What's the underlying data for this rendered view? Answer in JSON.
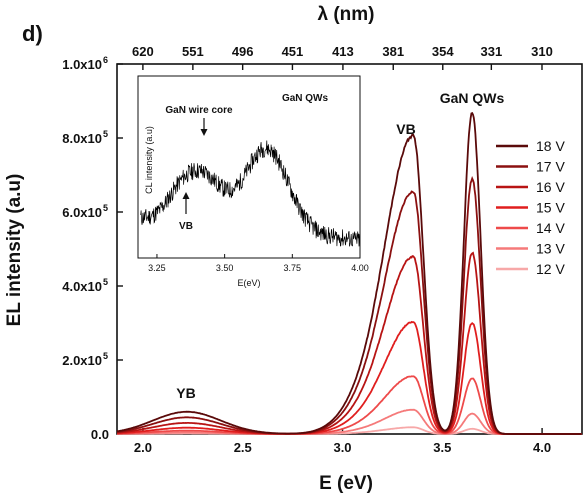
{
  "panel_label": "d)",
  "chart_data": {
    "type": "line",
    "xlabel": "E (eV)",
    "ylabel": "EL intensity (a.u)",
    "top_axis_label": "λ (nm)",
    "xlim": [
      1.87,
      4.2
    ],
    "ylim": [
      0,
      1000000
    ],
    "x_ticks": [
      2.0,
      2.5,
      3.0,
      3.5,
      4.0
    ],
    "x_tick_labels": [
      "2.0",
      "2.5",
      "3.0",
      "3.5",
      "4.0"
    ],
    "y_ticks": [
      0,
      200000,
      400000,
      600000,
      800000,
      1000000
    ],
    "y_tick_labels": [
      {
        "text": "0.0",
        "exp": ""
      },
      {
        "text": "2.0x10",
        "exp": "5"
      },
      {
        "text": "4.0x10",
        "exp": "5"
      },
      {
        "text": "6.0x10",
        "exp": "5"
      },
      {
        "text": "8.0x10",
        "exp": "5"
      },
      {
        "text": "1.0x10",
        "exp": "6"
      }
    ],
    "top_ticks": [
      620,
      551,
      496,
      451,
      413,
      381,
      354,
      331,
      310
    ],
    "annotations": {
      "yb": "YB",
      "vb": "VB",
      "qw": "GaN QWs"
    },
    "series": [
      {
        "name": "18 V",
        "color": "#5a0a0a",
        "yb": 60000,
        "vb": 800000,
        "qw": 870000
      },
      {
        "name": "17 V",
        "color": "#8b1010",
        "yb": 45000,
        "vb": 650000,
        "qw": 690000
      },
      {
        "name": "16 V",
        "color": "#b81414",
        "yb": 30000,
        "vb": 475000,
        "qw": 490000
      },
      {
        "name": "15 V",
        "color": "#e01e1e",
        "yb": 17000,
        "vb": 300000,
        "qw": 300000
      },
      {
        "name": "14 V",
        "color": "#ee4a4a",
        "yb": 9000,
        "vb": 155000,
        "qw": 150000
      },
      {
        "name": "13 V",
        "color": "#f57a7a",
        "yb": 4000,
        "vb": 65000,
        "qw": 55000
      },
      {
        "name": "12 V",
        "color": "#f7a8a8",
        "yb": 1500,
        "vb": 18000,
        "qw": 14000
      }
    ],
    "inset": {
      "xlabel": "E(eV)",
      "ylabel": "CL intensity (a.u)",
      "xlim": [
        3.18,
        4.0
      ],
      "x_ticks": [
        3.25,
        3.5,
        3.75,
        4.0
      ],
      "x_tick_labels": [
        "3.25",
        "3.50",
        "3.75",
        "4.00"
      ],
      "labels": {
        "core": "GaN wire core",
        "qw": "GaN QWs",
        "vb": "VB"
      },
      "color": "#000000"
    }
  }
}
